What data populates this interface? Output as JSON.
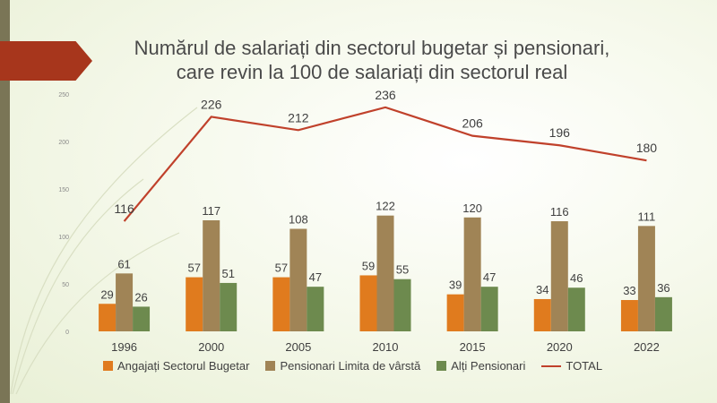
{
  "title_line1": "Numărul de salariați din sectorul bugetar și pensionari,",
  "title_line2": "care revin la 100 de salariați din sectorul real",
  "chart_data": {
    "type": "bar",
    "categories": [
      "1996",
      "2000",
      "2005",
      "2010",
      "2015",
      "2020",
      "2022"
    ],
    "ylim": [
      0,
      250
    ],
    "yticks": [
      0,
      50,
      100,
      150,
      200,
      250
    ],
    "series": [
      {
        "name": "Angajați Sectorul Bugetar",
        "type": "bar",
        "color": "#e07b1e",
        "values": [
          29,
          57,
          57,
          59,
          39,
          34,
          33
        ]
      },
      {
        "name": "Pensionari Limita de vârstă",
        "type": "bar",
        "color": "#a08456",
        "values": [
          61,
          117,
          108,
          122,
          120,
          116,
          111
        ]
      },
      {
        "name": "Alți Pensionari",
        "type": "bar",
        "color": "#6d8a4e",
        "values": [
          26,
          51,
          47,
          55,
          47,
          46,
          36
        ]
      },
      {
        "name": "TOTAL",
        "type": "line",
        "color": "#c0412b",
        "values": [
          116,
          226,
          212,
          236,
          206,
          196,
          180
        ]
      }
    ],
    "grid": false,
    "legend_position": "bottom"
  }
}
